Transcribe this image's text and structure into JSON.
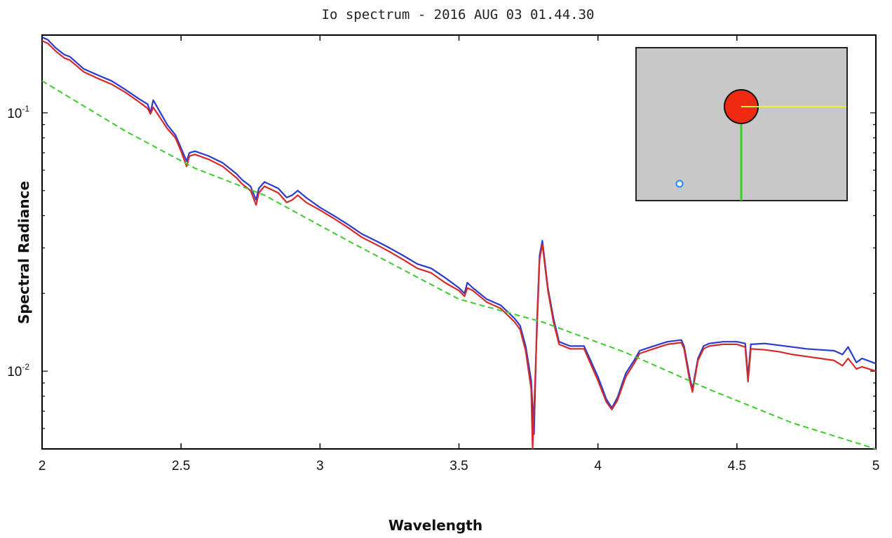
{
  "chart_data": {
    "type": "line",
    "title": "Io spectrum - 2016 AUG 03 01.44.30",
    "xlabel": "Wavelength",
    "ylabel": "Spectral Radiance",
    "xlim": [
      2,
      5
    ],
    "ylim": [
      0.005,
      0.2
    ],
    "yscale": "log",
    "grid": false,
    "x_ticks": [
      "2",
      "2.5",
      "3",
      "3.5",
      "4",
      "4.5",
      "5"
    ],
    "y_ticks": [
      {
        "value": 0.1,
        "base": "10",
        "exp": "-1"
      },
      {
        "value": 0.01,
        "base": "10",
        "exp": "-2"
      }
    ],
    "series": [
      {
        "color": "#2b3bd0",
        "x": [
          2.0,
          2.02,
          2.05,
          2.08,
          2.1,
          2.15,
          2.2,
          2.25,
          2.3,
          2.35,
          2.38,
          2.39,
          2.4,
          2.45,
          2.48,
          2.5,
          2.52,
          2.53,
          2.55,
          2.6,
          2.65,
          2.7,
          2.72,
          2.75,
          2.77,
          2.78,
          2.8,
          2.85,
          2.88,
          2.9,
          2.92,
          2.95,
          3.0,
          3.05,
          3.1,
          3.15,
          3.2,
          3.25,
          3.3,
          3.35,
          3.4,
          3.45,
          3.5,
          3.52,
          3.53,
          3.55,
          3.6,
          3.65,
          3.7,
          3.72,
          3.74,
          3.76,
          3.77,
          3.78,
          3.79,
          3.8,
          3.82,
          3.84,
          3.86,
          3.9,
          3.95,
          4.0,
          4.03,
          4.05,
          4.07,
          4.1,
          4.13,
          4.15,
          4.2,
          4.25,
          4.3,
          4.31,
          4.33,
          4.34,
          4.36,
          4.38,
          4.4,
          4.45,
          4.5,
          4.53,
          4.54,
          4.55,
          4.6,
          4.65,
          4.7,
          4.75,
          4.8,
          4.85,
          4.88,
          4.9,
          4.93,
          4.95,
          5.0
        ],
        "y": [
          0.196,
          0.192,
          0.178,
          0.168,
          0.165,
          0.148,
          0.14,
          0.133,
          0.123,
          0.113,
          0.108,
          0.1,
          0.112,
          0.09,
          0.082,
          0.073,
          0.065,
          0.07,
          0.071,
          0.068,
          0.064,
          0.058,
          0.055,
          0.052,
          0.046,
          0.051,
          0.054,
          0.051,
          0.047,
          0.048,
          0.05,
          0.047,
          0.043,
          0.04,
          0.037,
          0.034,
          0.032,
          0.03,
          0.028,
          0.026,
          0.025,
          0.023,
          0.021,
          0.02,
          0.022,
          0.021,
          0.019,
          0.018,
          0.016,
          0.015,
          0.0125,
          0.0092,
          0.0057,
          0.015,
          0.028,
          0.032,
          0.021,
          0.016,
          0.013,
          0.0125,
          0.0125,
          0.0095,
          0.0078,
          0.0072,
          0.0079,
          0.0098,
          0.011,
          0.012,
          0.0125,
          0.013,
          0.0132,
          0.0125,
          0.0095,
          0.0085,
          0.0112,
          0.0125,
          0.0128,
          0.013,
          0.013,
          0.0128,
          0.0095,
          0.0127,
          0.0128,
          0.0126,
          0.0124,
          0.0122,
          0.0121,
          0.012,
          0.0116,
          0.0124,
          0.0108,
          0.0112,
          0.0107
        ]
      },
      {
        "color": "#d42a2a",
        "x": [
          2.0,
          2.02,
          2.05,
          2.08,
          2.1,
          2.15,
          2.2,
          2.25,
          2.3,
          2.35,
          2.38,
          2.39,
          2.4,
          2.45,
          2.48,
          2.5,
          2.52,
          2.53,
          2.55,
          2.6,
          2.65,
          2.7,
          2.72,
          2.75,
          2.77,
          2.78,
          2.8,
          2.85,
          2.88,
          2.9,
          2.92,
          2.95,
          3.0,
          3.05,
          3.1,
          3.15,
          3.2,
          3.25,
          3.3,
          3.35,
          3.4,
          3.45,
          3.5,
          3.52,
          3.53,
          3.55,
          3.6,
          3.65,
          3.7,
          3.72,
          3.74,
          3.76,
          3.765,
          3.78,
          3.79,
          3.8,
          3.82,
          3.84,
          3.86,
          3.9,
          3.95,
          4.0,
          4.03,
          4.05,
          4.07,
          4.1,
          4.13,
          4.15,
          4.2,
          4.25,
          4.3,
          4.31,
          4.33,
          4.34,
          4.36,
          4.38,
          4.4,
          4.45,
          4.5,
          4.53,
          4.54,
          4.55,
          4.6,
          4.65,
          4.7,
          4.75,
          4.8,
          4.85,
          4.88,
          4.9,
          4.93,
          4.95,
          5.0
        ],
        "y": [
          0.19,
          0.186,
          0.173,
          0.163,
          0.16,
          0.144,
          0.136,
          0.129,
          0.12,
          0.11,
          0.104,
          0.099,
          0.105,
          0.087,
          0.08,
          0.071,
          0.062,
          0.068,
          0.069,
          0.066,
          0.062,
          0.056,
          0.053,
          0.05,
          0.044,
          0.049,
          0.052,
          0.049,
          0.045,
          0.046,
          0.048,
          0.045,
          0.042,
          0.039,
          0.036,
          0.033,
          0.031,
          0.029,
          0.027,
          0.025,
          0.024,
          0.022,
          0.0205,
          0.0195,
          0.021,
          0.0205,
          0.0185,
          0.0175,
          0.0155,
          0.0145,
          0.012,
          0.0085,
          0.005,
          0.014,
          0.027,
          0.031,
          0.0205,
          0.0155,
          0.0127,
          0.0122,
          0.0122,
          0.0092,
          0.0076,
          0.0071,
          0.0077,
          0.0095,
          0.0107,
          0.0117,
          0.0122,
          0.0127,
          0.0129,
          0.0122,
          0.0092,
          0.0083,
          0.011,
          0.0122,
          0.0125,
          0.0127,
          0.0127,
          0.0124,
          0.0091,
          0.0122,
          0.0121,
          0.0119,
          0.0116,
          0.0114,
          0.0112,
          0.011,
          0.0105,
          0.0112,
          0.0102,
          0.0104,
          0.01
        ]
      },
      {
        "color": "#3ccc2c",
        "dashed": true,
        "x": [
          2.0,
          2.3,
          2.55,
          2.8,
          3.1,
          3.5,
          3.8,
          4.1,
          4.4,
          4.7,
          5.0
        ],
        "y": [
          0.133,
          0.085,
          0.061,
          0.048,
          0.032,
          0.019,
          0.0155,
          0.0118,
          0.0085,
          0.0063,
          0.005
        ]
      }
    ]
  },
  "inset": {
    "background": "#c8c8c8",
    "body_color": "#ee2a12",
    "yellow_line_color": "#f2f02a",
    "green_line_color": "#3ccc2c",
    "small_dot_color": "#1e88ff"
  }
}
